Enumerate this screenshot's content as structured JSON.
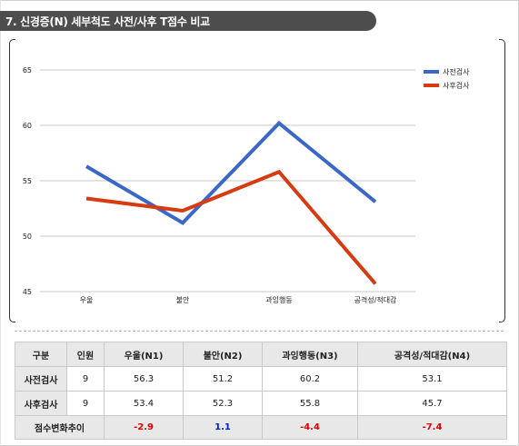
{
  "title": "7. 신경증(N) 세부척도 사전/사후 T점수 비교",
  "chart_data": {
    "type": "line",
    "categories": [
      "우울",
      "불안",
      "과잉행동",
      "공격성/적대감"
    ],
    "ylim": [
      45,
      65
    ],
    "yticks": [
      45,
      50,
      55,
      60,
      65
    ],
    "grid": true,
    "legend": "top-right",
    "series": [
      {
        "name": "사전검사",
        "values": [
          56.3,
          51.2,
          60.2,
          53.1
        ],
        "color": "#3a67c8"
      },
      {
        "name": "사후검사",
        "values": [
          53.4,
          52.3,
          55.8,
          45.7
        ],
        "color": "#d63b12"
      }
    ]
  },
  "table": {
    "headers": [
      "구분",
      "인원",
      "우울(N1)",
      "불안(N2)",
      "과잉행동(N3)",
      "공격성/적대감(N4)"
    ],
    "rows": [
      {
        "label": "사전검사",
        "n": "9",
        "values": [
          "56.3",
          "51.2",
          "60.2",
          "53.1"
        ]
      },
      {
        "label": "사후검사",
        "n": "9",
        "values": [
          "53.4",
          "52.3",
          "55.8",
          "45.7"
        ]
      }
    ],
    "change": {
      "label": "점수변화추이",
      "values": [
        "-2.9",
        "1.1",
        "-4.4",
        "-7.4"
      ]
    }
  }
}
